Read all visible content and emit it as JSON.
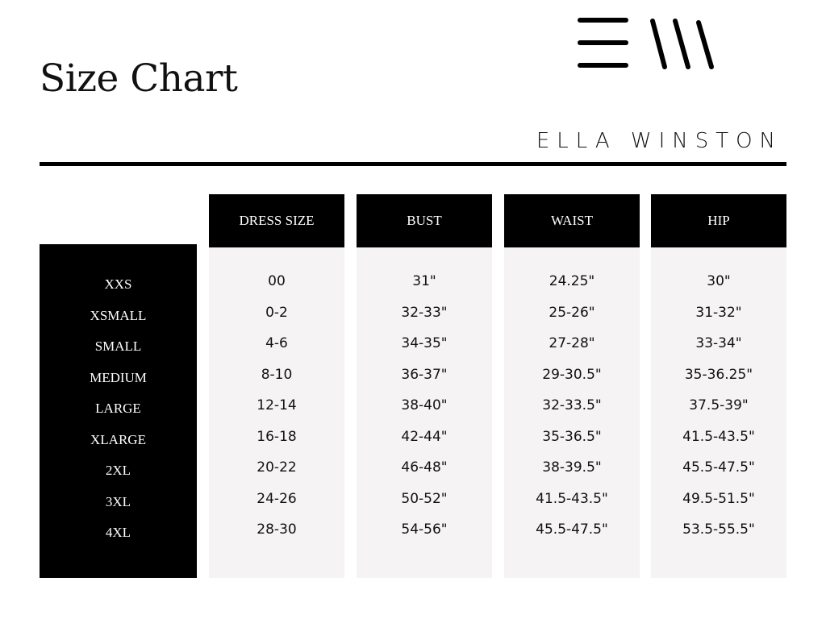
{
  "title": "Size Chart",
  "brand": {
    "name": "ELLA WINSTON",
    "logo_text": "EW"
  },
  "colors": {
    "dark": "#000000",
    "column_bg": "#f5f3f4",
    "text": "#111111"
  },
  "table": {
    "columns": [
      "DRESS SIZE",
      "BUST",
      "WAIST",
      "HIP"
    ],
    "sizes": [
      "XXS",
      "XSMALL",
      "SMALL",
      "MEDIUM",
      "LARGE",
      "XLARGE",
      "2XL",
      "3XL",
      "4XL"
    ],
    "values": [
      [
        "00",
        "0-2",
        "4-6",
        "8-10",
        "12-14",
        "16-18",
        "20-22",
        "24-26",
        "28-30"
      ],
      [
        "31\"",
        "32-33\"",
        "34-35\"",
        "36-37\"",
        "38-40\"",
        "42-44\"",
        "46-48\"",
        "50-52\"",
        "54-56\""
      ],
      [
        "24.25\"",
        "25-26\"",
        "27-28\"",
        "29-30.5\"",
        "32-33.5\"",
        "35-36.5\"",
        "38-39.5\"",
        "41.5-43.5\"",
        "45.5-47.5\""
      ],
      [
        "30\"",
        "31-32\"",
        "33-34\"",
        "35-36.25\"",
        "37.5-39\"",
        "41.5-43.5\"",
        "45.5-47.5\"",
        "49.5-51.5\"",
        "53.5-55.5\""
      ]
    ]
  }
}
